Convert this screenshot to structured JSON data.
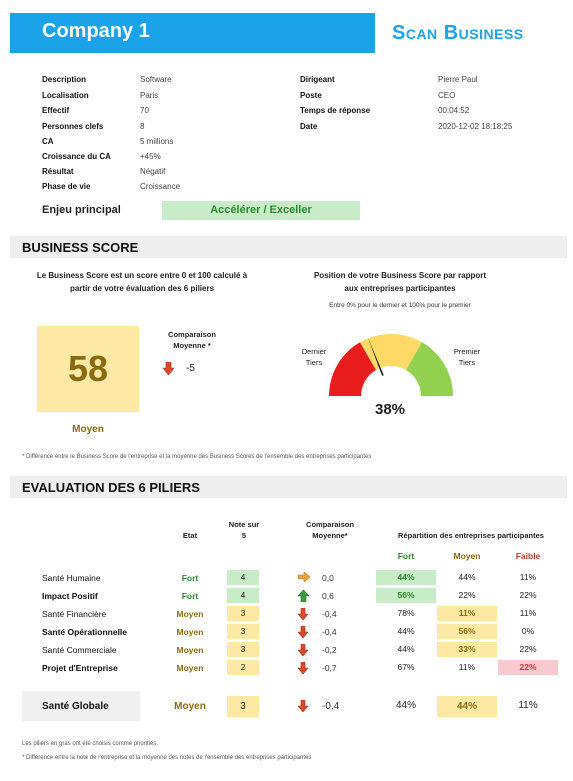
{
  "header": {
    "company": "Company 1",
    "brand": "Scan Business"
  },
  "info_left": [
    {
      "label": "Description",
      "value": "Software"
    },
    {
      "label": "Localisation",
      "value": "Paris"
    },
    {
      "label": "Effectif",
      "value": "70"
    },
    {
      "label": "Personnes clefs",
      "value": "8"
    },
    {
      "label": "CA",
      "value": "5 millions"
    },
    {
      "label": "Croissance du CA",
      "value": "+45%"
    },
    {
      "label": "Résultat",
      "value": "Négatif"
    },
    {
      "label": "Phase de vie",
      "value": "Croissance"
    }
  ],
  "info_right": [
    {
      "label": "Dirigeant",
      "value": "Pierre Paul"
    },
    {
      "label": "Poste",
      "value": "CEO"
    },
    {
      "label": "Temps de réponse",
      "value": "00:04:52"
    },
    {
      "label": "Date",
      "value": "2020-12-02 18:18:25"
    }
  ],
  "enjeu": {
    "label": "Enjeu principal",
    "value": "Accélérer / Exceller"
  },
  "business_score": {
    "section_title": "BUSINESS SCORE",
    "desc_line1": "Le Business Score est un score entre 0 et 100 calculé à",
    "desc_line2": "partir de votre évaluation des 6 piliers",
    "score": "58",
    "score_level": "Moyen",
    "comparison_label1": "Comparaison",
    "comparison_label2": "Moyenne *",
    "comparison_value": "-5",
    "position_title1": "Position de votre Business Score par rapport",
    "position_title2": "aux entreprises participantes",
    "position_sub": "Entre 0% pour le dernier et 100% pour le premier",
    "gauge_left1": "Dernier",
    "gauge_left2": "Tiers",
    "gauge_right1": "Premier",
    "gauge_right2": "Tiers",
    "gauge_pct_label": "38%",
    "gauge_value": 0.38,
    "note": "* Différence entre le Business Score de l'entreprise et la moyenne des Business Scores de l'ensemble des entreprises participantes",
    "colors": {
      "low": "#e81c1c",
      "mid": "#ffd966",
      "high": "#92d050",
      "needle": "#111111"
    }
  },
  "piliers": {
    "section_title": "EVALUATION DES 6 PILIERS",
    "headers": {
      "etat": "Etat",
      "note1": "Note sur",
      "note2": "5",
      "cmp1": "Comparaison",
      "cmp2": "Moyenne*",
      "repartition": "Répartition des entreprises participantes",
      "fort": "Fort",
      "moyen": "Moyen",
      "faible": "Faible"
    },
    "rows": [
      {
        "name": "Santé Humaine",
        "bold": false,
        "etat": "Fort",
        "note": "4",
        "arrow": "right",
        "cmp": "0,0",
        "fort": "44%",
        "moyen": "44%",
        "faible": "11%",
        "hl": "fort"
      },
      {
        "name": "Impact Positif",
        "bold": true,
        "etat": "Fort",
        "note": "4",
        "arrow": "up",
        "cmp": "0,6",
        "fort": "56%",
        "moyen": "22%",
        "faible": "22%",
        "hl": "fort"
      },
      {
        "name": "Santé Financière",
        "bold": false,
        "etat": "Moyen",
        "note": "3",
        "arrow": "down",
        "cmp": "-0,4",
        "fort": "78%",
        "moyen": "11%",
        "faible": "11%",
        "hl": "moyen"
      },
      {
        "name": "Santé Opérationnelle",
        "bold": true,
        "etat": "Moyen",
        "note": "3",
        "arrow": "down",
        "cmp": "-0,4",
        "fort": "44%",
        "moyen": "56%",
        "faible": "0%",
        "hl": "moyen"
      },
      {
        "name": "Santé Commerciale",
        "bold": false,
        "etat": "Moyen",
        "note": "3",
        "arrow": "down",
        "cmp": "-0,2",
        "fort": "44%",
        "moyen": "33%",
        "faible": "22%",
        "hl": "moyen"
      },
      {
        "name": "Projet d'Entreprise",
        "bold": true,
        "etat": "Moyen",
        "note": "2",
        "arrow": "down",
        "cmp": "-0,7",
        "fort": "67%",
        "moyen": "11%",
        "faible": "22%",
        "hl": "faible"
      }
    ],
    "global": {
      "name": "Santé Globale",
      "etat": "Moyen",
      "note": "3",
      "arrow": "down",
      "cmp": "-0,4",
      "fort": "44%",
      "moyen": "44%",
      "faible": "11%"
    },
    "footnote1": "Les piliers en gras ont été choisis comme prioritiés.",
    "footnote2": "* Différence entre la note de l'entreprise et la moyenne des notes de l'ensemble des entreprises participantes"
  },
  "colors": {
    "accent": "#1aa3e8",
    "fort": "#2a8a2a",
    "moyen": "#8b6a12",
    "faible": "#c0392b",
    "fort_bg": "#c8ecc8",
    "moyen_bg": "#fde9a4",
    "faible_bg": "#f9c9cf"
  }
}
